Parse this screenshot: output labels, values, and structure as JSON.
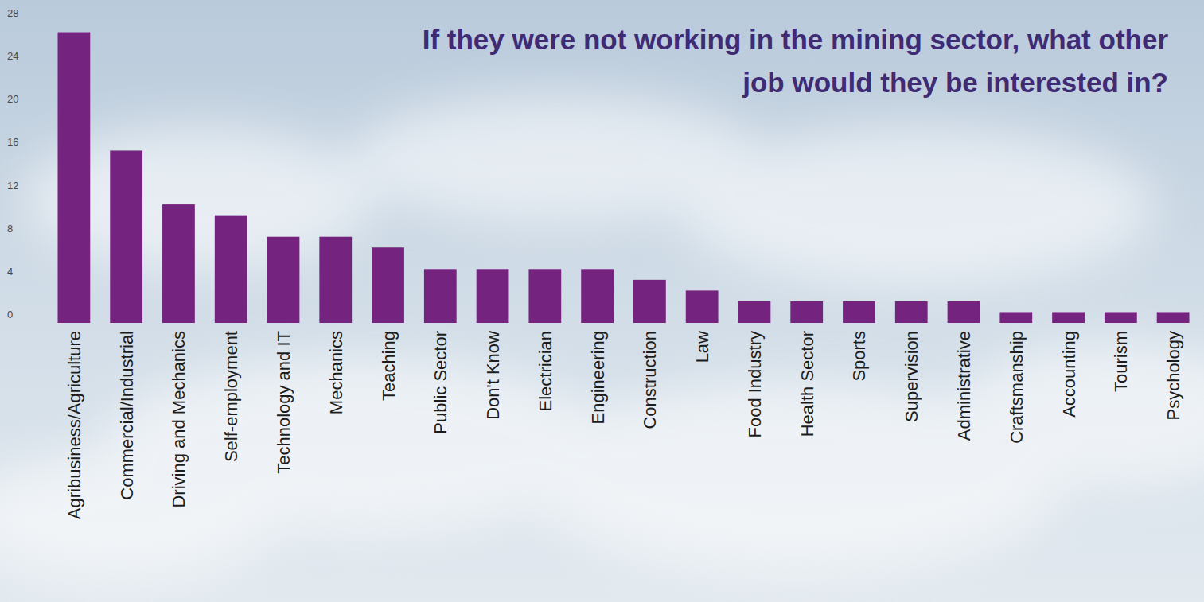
{
  "chart_data": {
    "type": "bar",
    "title": "If they were not working in the mining sector, what other job would they be interested in?",
    "categories": [
      "Agribusiness/Agriculture",
      "Commercial/Industrial",
      "Driving and Mechanics",
      "Self-employment",
      "Technology and IT",
      "Mechanics",
      "Teaching",
      "Public Sector",
      "Don't Know",
      "Electrician",
      "Engineering",
      "Construction",
      "Law",
      "Food Industry",
      "Health Sector",
      "Sports",
      "Supervision",
      "Administrative",
      "Craftsmanship",
      "Accounting",
      "Tourism",
      "Psychology"
    ],
    "values": [
      27,
      16,
      11,
      10,
      8,
      8,
      7,
      5,
      5,
      5,
      5,
      4,
      3,
      2,
      2,
      2,
      2,
      2,
      1,
      1,
      1,
      1
    ],
    "color": "#74237e",
    "ylim": [
      0,
      28
    ],
    "yticks": [
      0,
      4,
      8,
      12,
      16,
      20,
      24,
      28
    ],
    "grid": false
  }
}
